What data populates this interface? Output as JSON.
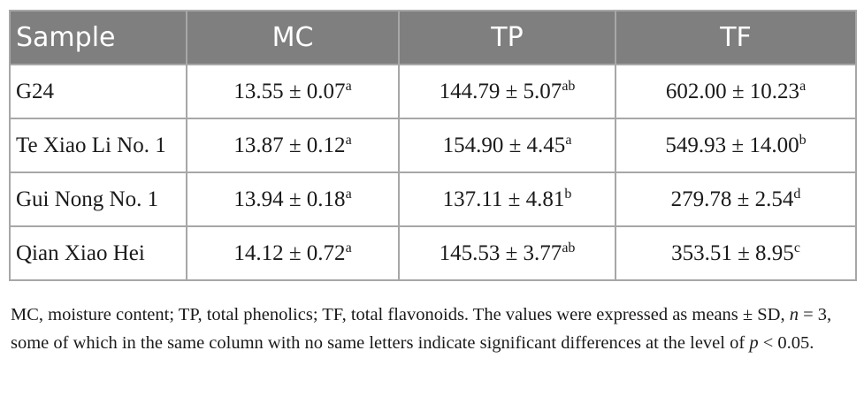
{
  "table": {
    "headers": [
      "Sample",
      "MC",
      "TP",
      "TF"
    ],
    "rows": [
      {
        "sample": "G24",
        "mc": {
          "value": "13.55 ± 0.07",
          "sup": "a"
        },
        "tp": {
          "value": "144.79 ± 5.07",
          "sup": "ab"
        },
        "tf": {
          "value": "602.00 ± 10.23",
          "sup": "a"
        }
      },
      {
        "sample": "Te Xiao Li No. 1",
        "mc": {
          "value": "13.87 ± 0.12",
          "sup": "a"
        },
        "tp": {
          "value": "154.90 ± 4.45",
          "sup": "a"
        },
        "tf": {
          "value": "549.93 ± 14.00",
          "sup": "b"
        }
      },
      {
        "sample": "Gui Nong No. 1",
        "mc": {
          "value": "13.94 ± 0.18",
          "sup": "a"
        },
        "tp": {
          "value": "137.11 ± 4.81",
          "sup": "b"
        },
        "tf": {
          "value": "279.78 ± 2.54",
          "sup": "d"
        }
      },
      {
        "sample": "Qian Xiao Hei",
        "mc": {
          "value": "14.12 ± 0.72",
          "sup": "a"
        },
        "tp": {
          "value": "145.53 ± 3.77",
          "sup": "ab"
        },
        "tf": {
          "value": "353.51 ± 8.95",
          "sup": "c"
        }
      }
    ]
  },
  "footnote": {
    "part1": "MC, moisture content; TP, total phenolics; TF, total flavonoids. The values were expressed as means ± SD, ",
    "n_symbol": "n",
    "part2": " = 3, some of which in the same column with no same letters indicate significant differences at the level of ",
    "p_symbol": "p",
    "part3": " < 0.05."
  },
  "colors": {
    "header_bg": "#7f7f7f",
    "header_text": "#ffffff",
    "border": "#a7a7a7"
  }
}
